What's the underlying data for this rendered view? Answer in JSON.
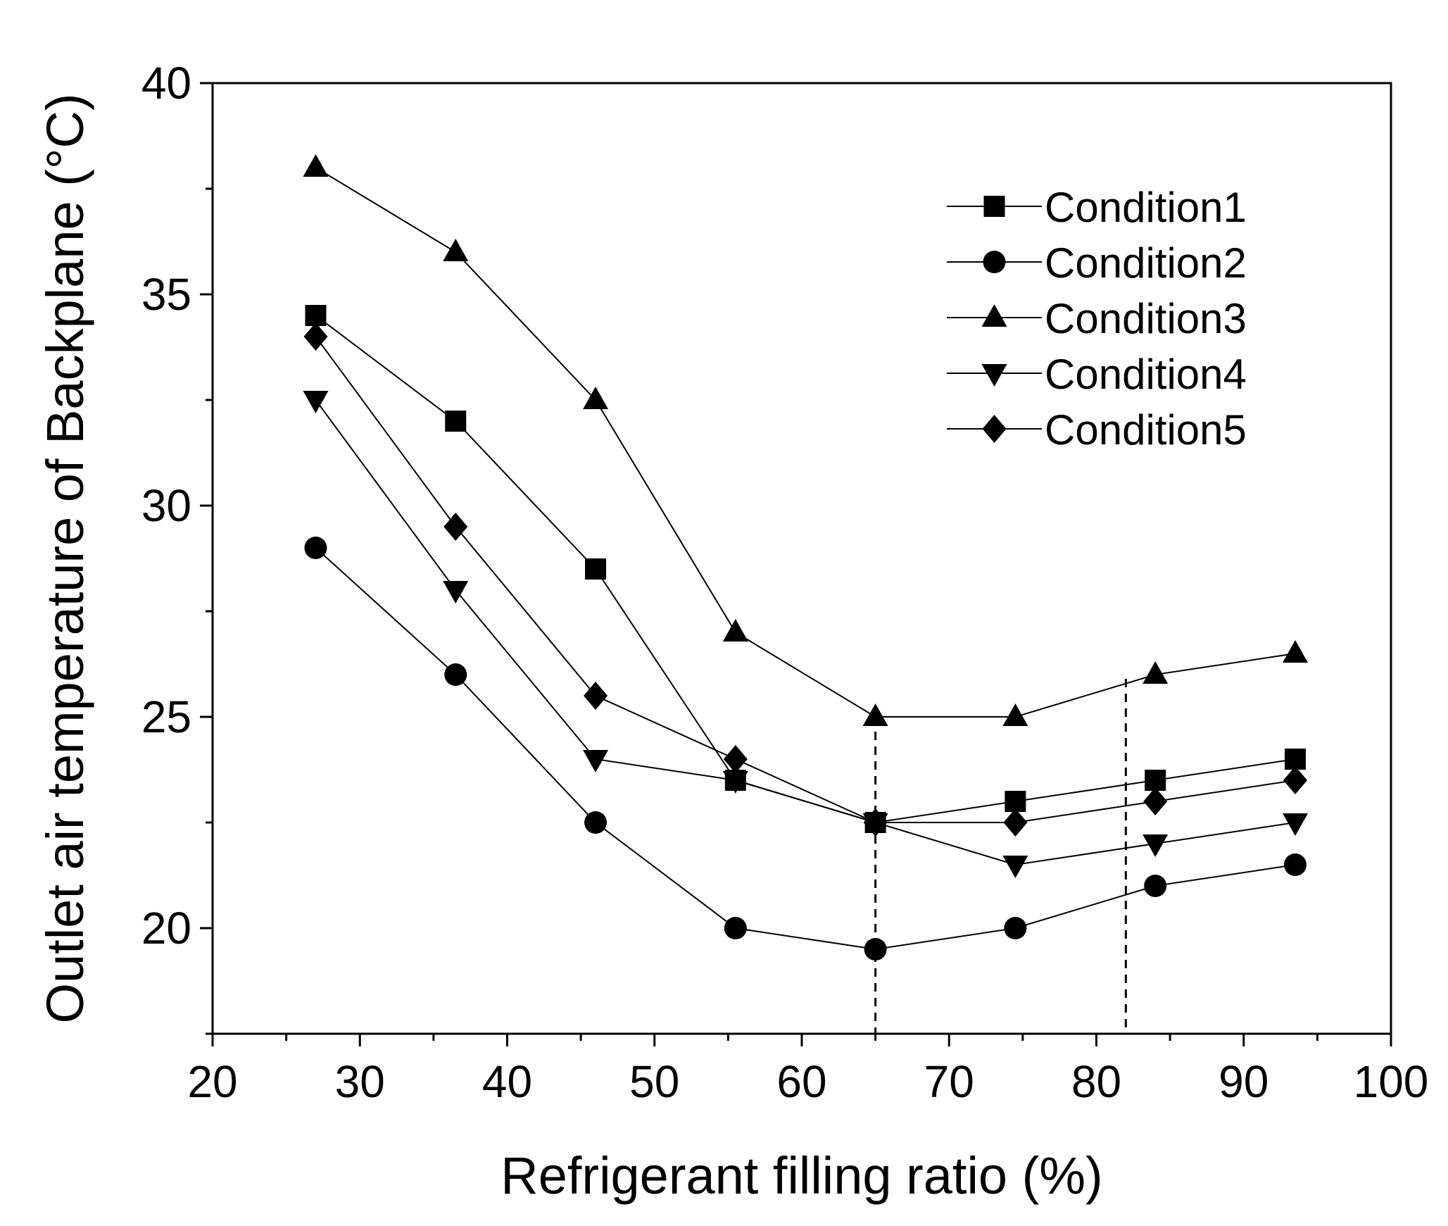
{
  "chart_data": {
    "type": "line",
    "xlabel": "Refrigerant filling ratio (%)",
    "ylabel": "Outlet air temperature of  Backplane (°C)",
    "xlim": [
      20,
      100
    ],
    "ylim": [
      17.5,
      40
    ],
    "xticks": [
      20,
      30,
      40,
      50,
      60,
      70,
      80,
      90,
      100
    ],
    "yticks": [
      20,
      25,
      30,
      35,
      40
    ],
    "x": [
      27,
      36.5,
      46,
      55.5,
      65,
      74.5,
      84,
      93.5
    ],
    "series": [
      {
        "name": "Condition1",
        "marker": "square",
        "values": [
          34.5,
          32,
          28.5,
          23.5,
          22.5,
          23,
          23.5,
          24
        ]
      },
      {
        "name": "Condition2",
        "marker": "circle",
        "values": [
          29,
          26,
          22.5,
          20,
          19.5,
          20,
          21,
          21.5
        ]
      },
      {
        "name": "Condition3",
        "marker": "triangle-up",
        "values": [
          38,
          36,
          32.5,
          27,
          25,
          25,
          26,
          26.5
        ]
      },
      {
        "name": "Condition4",
        "marker": "triangle-down",
        "values": [
          32.5,
          28,
          24,
          23.5,
          22.5,
          21.5,
          22,
          22.5
        ]
      },
      {
        "name": "Condition5",
        "marker": "diamond",
        "values": [
          34,
          29.5,
          25.5,
          24,
          22.5,
          22.5,
          23,
          23.5
        ]
      }
    ],
    "reference_lines": [
      {
        "x": 65,
        "y_top": 25,
        "style": "dashed"
      },
      {
        "x": 82,
        "y_top": 25.9,
        "style": "dashed"
      }
    ],
    "legend_position": "top-right"
  }
}
